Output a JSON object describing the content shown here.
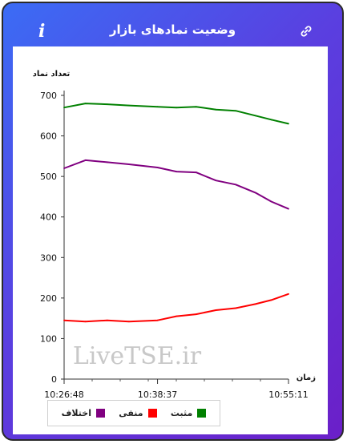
{
  "header": {
    "title": "وضعیت نمادهای بازار",
    "info_glyph": "i",
    "info_icon": "info-icon",
    "link_icon": "link-icon"
  },
  "chart_data": {
    "type": "line",
    "ylabel": "تعداد نماد",
    "xlabel": "زمان",
    "watermark": "LiveTSE.ir",
    "ylim": [
      0,
      700
    ],
    "yticks": [
      "0",
      "100",
      "200",
      "300",
      "400",
      "500",
      "600",
      "700"
    ],
    "x_tick_labels": [
      "10:26:48",
      "10:38:37",
      "10:55:11"
    ],
    "x": [
      "10:26:48",
      "10:29:30",
      "10:32:15",
      "10:35:00",
      "10:38:37",
      "10:41:00",
      "10:43:30",
      "10:46:00",
      "10:48:30",
      "10:51:00",
      "10:53:00",
      "10:55:11"
    ],
    "grid": false,
    "legend_position": "bottom-left",
    "series": [
      {
        "name": "مثبت",
        "color": "#008000",
        "values": [
          670,
          680,
          678,
          675,
          672,
          670,
          672,
          665,
          662,
          650,
          640,
          630
        ]
      },
      {
        "name": "منفی",
        "color": "#ff0000",
        "values": [
          145,
          142,
          145,
          142,
          145,
          155,
          160,
          170,
          175,
          185,
          195,
          210
        ]
      },
      {
        "name": "اختلاف",
        "color": "#800080",
        "values": [
          520,
          540,
          535,
          530,
          522,
          512,
          510,
          490,
          480,
          460,
          438,
          420
        ]
      }
    ]
  }
}
